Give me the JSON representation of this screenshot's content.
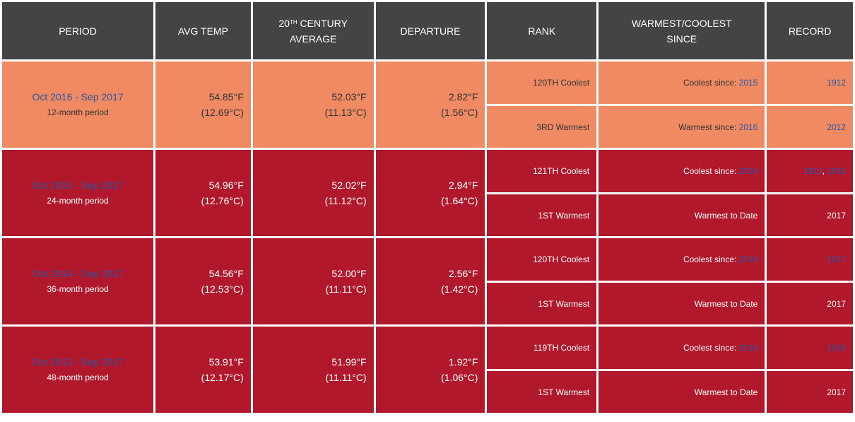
{
  "headers": {
    "period": "PERIOD",
    "avg_temp": "AVG TEMP",
    "century_prefix": "20",
    "century_sup": "TH",
    "century_rest": " CENTURY",
    "century_line2": "AVERAGE",
    "departure": "DEPARTURE",
    "rank": "RANK",
    "since_line1": "WARMEST/COOLEST",
    "since_line2": "SINCE",
    "record": "RECORD"
  },
  "colors": {
    "header": "#444444",
    "orange": "#ef8a62",
    "red": "#b2182b",
    "link": "#2a56a6"
  },
  "rows": [
    {
      "range": "Oct 2016 - Sep 2017",
      "label": "12-month period",
      "avg_f": "54.85°F",
      "avg_c": "(12.69°C)",
      "cent_f": "52.03°F",
      "cent_c": "(11.13°C)",
      "dep_f": "2.82°F",
      "dep_c": "(1.56°C)",
      "cool_rank": "120TH Coolest",
      "cool_since_prefix": "Coolest since: ",
      "cool_since_year": "2015",
      "cool_record_1": "1912",
      "cool_record_sep": "",
      "cool_record_2": "",
      "warm_rank": "3RD Warmest",
      "warm_since_prefix": "Warmest since: ",
      "warm_since_year": "2016",
      "warm_record": "2012"
    },
    {
      "range": "Oct 2015 - Sep 2017",
      "label": "24-month period",
      "avg_f": "54.96°F",
      "avg_c": "(12.76°C)",
      "cent_f": "52.02°F",
      "cent_c": "(11.12°C)",
      "dep_f": "2.94°F",
      "dep_c": "(1.64°C)",
      "cool_rank": "121TH Coolest",
      "cool_since_prefix": "Coolest since: ",
      "cool_since_year": "2016",
      "cool_record_1": "1913",
      "cool_record_sep": ", ",
      "cool_record_2": "1918",
      "warm_rank": "1ST Warmest",
      "warm_since_prefix": "Warmest to Date",
      "warm_since_year": "",
      "warm_record": "2017"
    },
    {
      "range": "Oct 2014 - Sep 2017",
      "label": "36-month period",
      "avg_f": "54.56°F",
      "avg_c": "(12.53°C)",
      "cent_f": "52.00°F",
      "cent_c": "(11.11°C)",
      "dep_f": "2.56°F",
      "dep_c": "(1.42°C)",
      "cool_rank": "120TH Coolest",
      "cool_since_prefix": "Coolest since: ",
      "cool_since_year": "2016",
      "cool_record_1": "1917",
      "cool_record_sep": "",
      "cool_record_2": "",
      "warm_rank": "1ST Warmest",
      "warm_since_prefix": "Warmest to Date",
      "warm_since_year": "",
      "warm_record": "2017"
    },
    {
      "range": "Oct 2013 - Sep 2017",
      "label": "48-month period",
      "avg_f": "53.91°F",
      "avg_c": "(12.17°C)",
      "cent_f": "51.99°F",
      "cent_c": "(11.11°C)",
      "dep_f": "1.92°F",
      "dep_c": "(1.06°C)",
      "cool_rank": "119TH Coolest",
      "cool_since_prefix": "Coolest since: ",
      "cool_since_year": "2016",
      "cool_record_1": "1918",
      "cool_record_sep": "",
      "cool_record_2": "",
      "warm_rank": "1ST Warmest",
      "warm_since_prefix": "Warmest to Date",
      "warm_since_year": "",
      "warm_record": "2017"
    }
  ]
}
